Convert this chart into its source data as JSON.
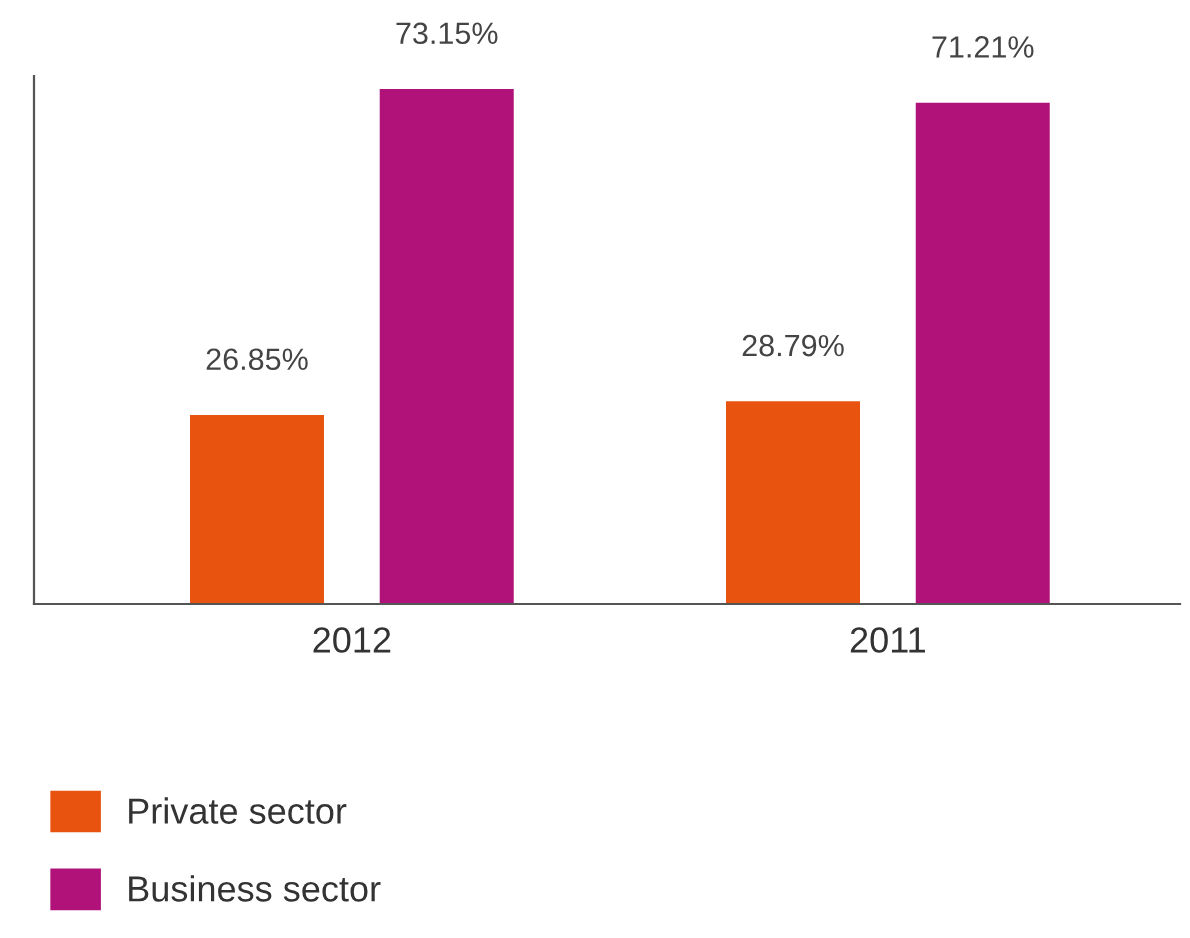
{
  "chart_data": {
    "type": "bar",
    "categories": [
      "2012",
      "2011"
    ],
    "series": [
      {
        "name": "Private sector",
        "color": "#e8540f",
        "values": [
          26.85,
          28.79
        ],
        "value_labels": [
          "26.85%",
          "28.79%"
        ]
      },
      {
        "name": "Business sector",
        "color": "#b0127a",
        "values": [
          73.15,
          71.21
        ],
        "value_labels": [
          "73.15%",
          "71.21%"
        ]
      }
    ],
    "relative": false,
    "ylim": [
      0,
      75
    ],
    "grid": false,
    "legend": "bottom left"
  }
}
